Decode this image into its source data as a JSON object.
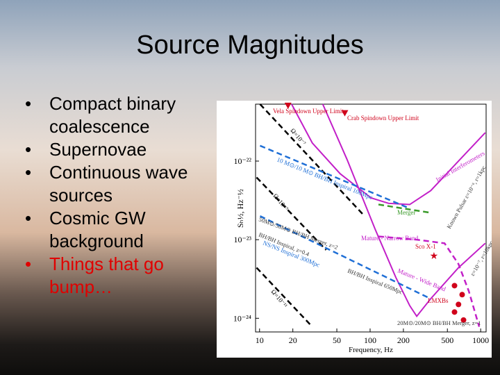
{
  "slide": {
    "title": "Source Magnitudes",
    "bullets": [
      "Compact binary coalescence",
      "Supernovae",
      "Continuous wave sources",
      "Cosmic GW background",
      "Things that go bump…"
    ]
  },
  "chart_data": {
    "type": "line",
    "log_x": true,
    "log_y": true,
    "xlabel": "Frequency, Hz",
    "ylabel": "Sₕ½, Hz⁻½",
    "xlim": [
      9.2,
      1120
    ],
    "ylim": [
      6.7e-25,
      5.3e-22
    ],
    "xticks": [
      10,
      20,
      50,
      100,
      200,
      500,
      1000
    ],
    "yticks": [
      {
        "value": 1e-22,
        "label": "10⁻²²"
      },
      {
        "value": 1e-23,
        "label": "10⁻²³"
      },
      {
        "value": 1e-24,
        "label": "10⁻²⁴"
      }
    ],
    "series": [
      {
        "name": "Initial Interferometers",
        "color": "#c21fc8",
        "x": [
          19.5,
          30,
          53.6,
          102,
          147,
          228,
          353,
          630,
          1100
        ],
        "values": [
          5.3e-22,
          1.7e-22,
          6.9e-23,
          3.4e-23,
          2.9e-23,
          2.8e-23,
          4.2e-23,
          1e-22,
          2.3e-22
        ]
      },
      {
        "name": "Mature - Wide Band",
        "color": "#c21fc8",
        "x": [
          37.3,
          62,
          111,
          171,
          228,
          264,
          353,
          630,
          1100
        ],
        "values": [
          5.3e-22,
          1.04e-22,
          1.36e-23,
          3.3e-24,
          1.45e-24,
          1.06e-24,
          1.77e-24,
          4.4e-24,
          9e-24
        ]
      },
      {
        "name": "Mature - Narrow Band",
        "color": "#c21fc8",
        "dash": true,
        "x": [
          119,
          264,
          471,
          630,
          782,
          970
        ],
        "values": [
          1.1e-23,
          1e-23,
          9e-24,
          4.9e-24,
          2.2e-24,
          7.8e-25
        ]
      },
      {
        "name": "Ω=10⁻⁷",
        "color": "#000000",
        "dash": true,
        "x": [
          10.1,
          89
        ],
        "values": [
          5.3e-22,
          2e-23
        ]
      },
      {
        "name": "Ω=10⁻⁹",
        "color": "#000000",
        "dash": true,
        "x": [
          9.4,
          40
        ],
        "values": [
          6.2e-23,
          7.4e-24
        ]
      },
      {
        "name": "Ω=10⁻¹¹",
        "color": "#000000",
        "dash": true,
        "x": [
          9.4,
          30
        ],
        "values": [
          4.4e-24,
          7.8e-25
        ]
      },
      {
        "name": "10 M⊙/10 M⊙ BH/BH Inspiral 100Mpc",
        "color": "#1f6fd6",
        "dash": true,
        "x": [
          10.1,
          228
        ],
        "values": [
          1.57e-22,
          2.5e-23
        ]
      },
      {
        "name": "NS/NS Inspiral 300Mpc",
        "color": "#1f6fd6",
        "dash": true,
        "x": [
          10.1,
          353
        ],
        "values": [
          2e-23,
          1.77e-24
        ]
      },
      {
        "name": "Merger",
        "color": "#3a9a2a",
        "dash": true,
        "x": [
          119,
          353
        ],
        "values": [
          2.8e-23,
          2.2e-23
        ]
      },
      {
        "name": "Vela Spindown Upper Limit",
        "color": "#d0021b",
        "marker": "triangle",
        "x": [
          18.1
        ],
        "values": [
          5.1e-22
        ]
      },
      {
        "name": "Crab Spindown Upper Limit",
        "color": "#d0021b",
        "marker": "triangle",
        "x": [
          59
        ],
        "values": [
          4.1e-22
        ]
      },
      {
        "name": "Sco X-1",
        "color": "#d0021b",
        "marker": "star",
        "x": [
          378
        ],
        "values": [
          6.3e-24
        ]
      },
      {
        "name": "LMXBs",
        "color": "#d0021b",
        "marker": "circle",
        "x": [
          580,
          630,
          680,
          580,
          700
        ],
        "values": [
          2.6e-24,
          1.5e-24,
          2e-24,
          1.2e-24,
          9.5e-25
        ]
      }
    ],
    "annotations": [
      "Known Pulsar ε=10⁻⁶, r=1kpc",
      "ε=10⁻⁷, r=10kpc",
      "50M⊙/50M⊙ BH/BH Merger, z=2",
      "BH/BH Inspiral, z=0.4",
      "BH/BH Inspiral 650Mpc",
      "20M⊙/20M⊙ BH/BH Merger, z=1"
    ]
  }
}
